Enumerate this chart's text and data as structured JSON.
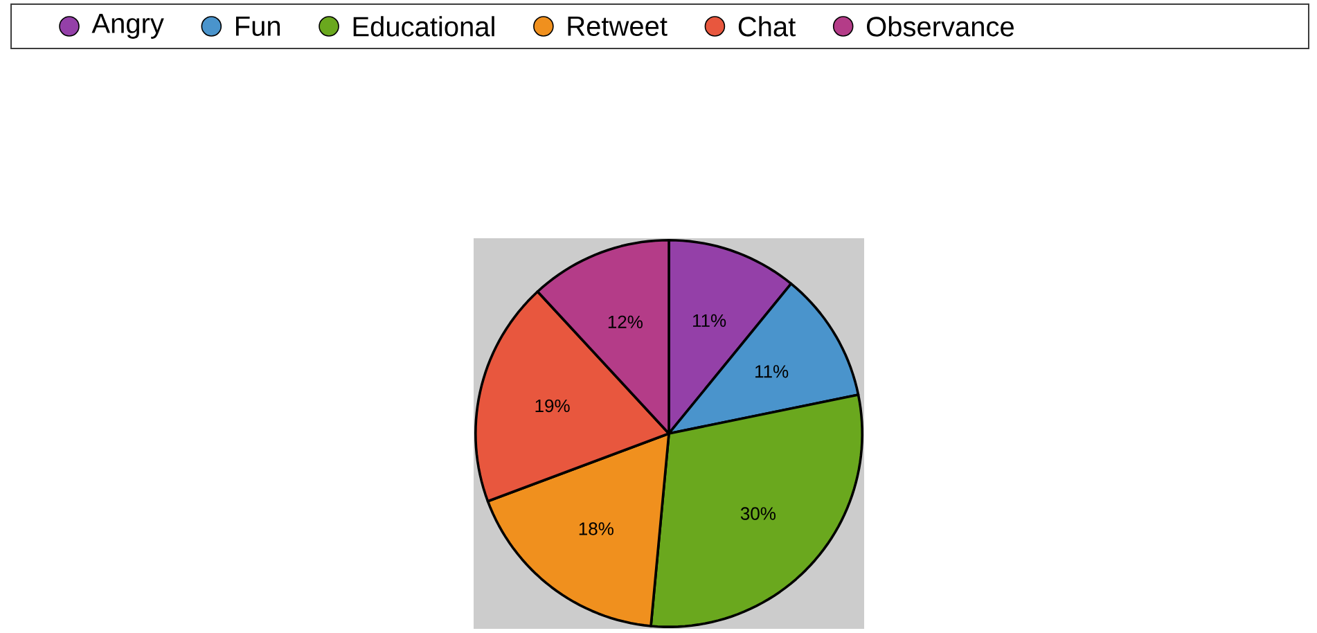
{
  "chart_data": {
    "type": "pie",
    "categories": [
      "Angry",
      "Fun",
      "Educational",
      "Retweet",
      "Chat",
      "Observance"
    ],
    "values": [
      11,
      11,
      30,
      18,
      19,
      12
    ],
    "value_labels": [
      "11%",
      "11%",
      "30%",
      "18%",
      "19%",
      "12%"
    ],
    "colors": [
      "#9440a8",
      "#4a94cc",
      "#6aa81e",
      "#f0901e",
      "#e8573e",
      "#b43c88"
    ],
    "legend": "top"
  }
}
